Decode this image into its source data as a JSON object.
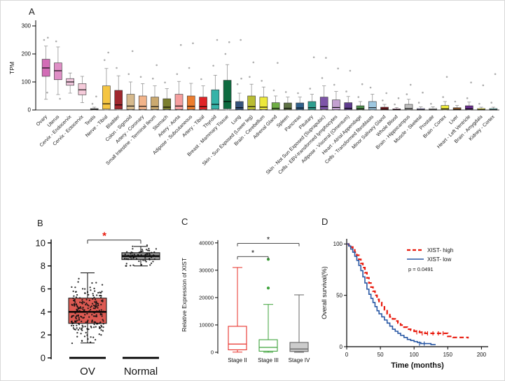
{
  "figure": {
    "panels": {
      "a": "A",
      "b": "B",
      "c": "C",
      "d": "D"
    }
  },
  "chart_data": [
    {
      "id": "A",
      "type": "box",
      "title": "",
      "ylabel": "TPM",
      "yticks": [
        0,
        100,
        200,
        300
      ],
      "ylim": [
        0,
        340
      ],
      "boxes": [
        {
          "label": "Ovary",
          "color": "#D26CB6",
          "q1": 120,
          "med": 150,
          "q3": 181,
          "lo": 38,
          "hi": 228,
          "out": [
            250,
            258,
            62
          ]
        },
        {
          "label": "Uterus",
          "color": "#DF8FC6",
          "q1": 108,
          "med": 140,
          "q3": 168,
          "lo": 55,
          "hi": 225,
          "out": [
            245,
            40
          ]
        },
        {
          "label": "Cervix - Endocervix",
          "color": "#F0C6DC",
          "q1": 88,
          "med": 100,
          "q3": 112,
          "lo": 60,
          "hi": 132,
          "out": []
        },
        {
          "label": "Cervix - Ectocervix",
          "color": "#F5CBDA",
          "q1": 54,
          "med": 72,
          "q3": 94,
          "lo": 26,
          "hi": 120,
          "out": []
        },
        {
          "label": "Testis",
          "color": "#A8A8A8",
          "q1": 1,
          "med": 2,
          "q3": 5,
          "lo": 0,
          "hi": 10,
          "out": [
            22,
            48
          ]
        },
        {
          "label": "Nerve - Tibial",
          "color": "#F5C542",
          "q1": 3,
          "med": 22,
          "q3": 86,
          "lo": 0,
          "hi": 148,
          "out": [
            178,
            205
          ]
        },
        {
          "label": "Bladder",
          "color": "#A0282E",
          "q1": 3,
          "med": 18,
          "q3": 70,
          "lo": 0,
          "hi": 122,
          "out": [
            150
          ]
        },
        {
          "label": "Colon - Sigmoid",
          "color": "#D6B98C",
          "q1": 2,
          "med": 14,
          "q3": 56,
          "lo": 0,
          "hi": 100,
          "out": [
            128,
            210
          ]
        },
        {
          "label": "Artery - Coronary",
          "color": "#F2B48A",
          "q1": 2,
          "med": 13,
          "q3": 50,
          "lo": 0,
          "hi": 94,
          "out": [
            118
          ]
        },
        {
          "label": "Small Intestine - Terminal Ileum",
          "color": "#CBA96F",
          "q1": 2,
          "med": 12,
          "q3": 46,
          "lo": 0,
          "hi": 86,
          "out": [
            112,
            160
          ]
        },
        {
          "label": "Stomach",
          "color": "#7A7E2E",
          "q1": 2,
          "med": 10,
          "q3": 40,
          "lo": 0,
          "hi": 76,
          "out": [
            98
          ]
        },
        {
          "label": "Artery - Aorta",
          "color": "#F59E9E",
          "q1": 2,
          "med": 14,
          "q3": 56,
          "lo": 0,
          "hi": 102,
          "out": [
            128,
            232
          ]
        },
        {
          "label": "Adipose - Subcutaneous",
          "color": "#EC7D2E",
          "q1": 2,
          "med": 13,
          "q3": 50,
          "lo": 0,
          "hi": 95,
          "out": [
            150,
            238
          ]
        },
        {
          "label": "Artery - Tibial",
          "color": "#E02428",
          "q1": 2,
          "med": 12,
          "q3": 46,
          "lo": 0,
          "hi": 86,
          "out": [
            110
          ]
        },
        {
          "label": "Thyroid",
          "color": "#35B3A8",
          "q1": 3,
          "med": 20,
          "q3": 72,
          "lo": 0,
          "hi": 124,
          "out": [
            158,
            250
          ]
        },
        {
          "label": "Breast - Mammary Tissue",
          "color": "#0E6B40",
          "q1": 4,
          "med": 30,
          "q3": 106,
          "lo": 0,
          "hi": 162,
          "out": [
            200,
            242
          ]
        },
        {
          "label": "Lung",
          "color": "#35537C",
          "q1": 1,
          "med": 8,
          "q3": 30,
          "lo": 0,
          "hi": 60,
          "out": [
            92,
            112,
            250
          ]
        },
        {
          "label": "Skin - Sun Exposed (Lower leg)",
          "color": "#B9BD33",
          "q1": 2,
          "med": 12,
          "q3": 50,
          "lo": 0,
          "hi": 92,
          "out": [
            118,
            170
          ]
        },
        {
          "label": "Brain - Cerebellum",
          "color": "#EDE93B",
          "q1": 2,
          "med": 10,
          "q3": 46,
          "lo": 0,
          "hi": 82,
          "out": [
            104
          ]
        },
        {
          "label": "Adrenal Gland",
          "color": "#6FAE45",
          "q1": 1,
          "med": 6,
          "q3": 26,
          "lo": 0,
          "hi": 50,
          "out": [
            70,
            168
          ]
        },
        {
          "label": "Spleen",
          "color": "#5E7243",
          "q1": 1,
          "med": 6,
          "q3": 25,
          "lo": 0,
          "hi": 46,
          "out": [
            64
          ]
        },
        {
          "label": "Pancreas",
          "color": "#30618C",
          "q1": 1,
          "med": 7,
          "q3": 25,
          "lo": 0,
          "hi": 46,
          "out": [
            60
          ]
        },
        {
          "label": "Pituitary",
          "color": "#2E9E8E",
          "q1": 1,
          "med": 8,
          "q3": 30,
          "lo": 0,
          "hi": 56,
          "out": [
            76,
            188
          ]
        },
        {
          "label": "Skin - Not Sun Exposed (Suprapubic)",
          "color": "#7D54A8",
          "q1": 2,
          "med": 12,
          "q3": 46,
          "lo": 0,
          "hi": 86,
          "out": [
            114,
            186
          ]
        },
        {
          "label": "Cells - EBV-transformed lymphocytes",
          "color": "#C3A0D0",
          "q1": 1,
          "med": 9,
          "q3": 36,
          "lo": 0,
          "hi": 66,
          "out": [
            90,
            148
          ]
        },
        {
          "label": "Adipose - Visceral (Omentum)",
          "color": "#5F3C8E",
          "q1": 1,
          "med": 6,
          "q3": 26,
          "lo": 0,
          "hi": 48,
          "out": [
            66,
            140
          ]
        },
        {
          "label": "Heart - Atrial Appendage",
          "color": "#4C8C4A",
          "q1": 1,
          "med": 4,
          "q3": 15,
          "lo": 0,
          "hi": 30,
          "out": [
            46,
            92
          ]
        },
        {
          "label": "Cells - Transformed fibroblasts",
          "color": "#9DC7E0",
          "q1": 1,
          "med": 8,
          "q3": 30,
          "lo": 0,
          "hi": 56,
          "out": [
            80
          ]
        },
        {
          "label": "Minor Salivary Gland",
          "color": "#7E1E24",
          "q1": 0,
          "med": 3,
          "q3": 10,
          "lo": 0,
          "hi": 20,
          "out": [
            34,
            60
          ]
        },
        {
          "label": "Whole Blood",
          "color": "#C75C94",
          "q1": 0,
          "med": 1,
          "q3": 4,
          "lo": 0,
          "hi": 9,
          "out": [
            20,
            42
          ]
        },
        {
          "label": "Brain - Hippocampus",
          "color": "#BFBFBF",
          "q1": 1,
          "med": 5,
          "q3": 20,
          "lo": 0,
          "hi": 38,
          "out": [
            56,
            90
          ]
        },
        {
          "label": "Muscle - Skeletal",
          "color": "#ABA3D8",
          "q1": 0,
          "med": 1,
          "q3": 5,
          "lo": 0,
          "hi": 11,
          "out": [
            26,
            62
          ]
        },
        {
          "label": "Prostate",
          "color": "#D9D9D9",
          "q1": 0,
          "med": 1,
          "q3": 5,
          "lo": 0,
          "hi": 11,
          "out": [
            22
          ]
        },
        {
          "label": "Brain - Cortex",
          "color": "#EDE93B",
          "q1": 1,
          "med": 4,
          "q3": 16,
          "lo": 0,
          "hi": 30,
          "out": [
            46,
            118
          ]
        },
        {
          "label": "Liver",
          "color": "#955C2E",
          "q1": 0,
          "med": 2,
          "q3": 8,
          "lo": 0,
          "hi": 16,
          "out": [
            30
          ]
        },
        {
          "label": "Heart - Left Ventricle",
          "color": "#6A2E8E",
          "q1": 1,
          "med": 4,
          "q3": 15,
          "lo": 0,
          "hi": 28,
          "out": [
            42,
            98
          ]
        },
        {
          "label": "Brain - Amygdala",
          "color": "#EDE93B",
          "q1": 0,
          "med": 1,
          "q3": 5,
          "lo": 0,
          "hi": 10,
          "out": [
            22,
            88
          ]
        },
        {
          "label": "Kidney - Cortex",
          "color": "#74C9C3",
          "q1": 0,
          "med": 1,
          "q3": 5,
          "lo": 0,
          "hi": 10,
          "out": [
            26,
            128
          ]
        }
      ]
    },
    {
      "id": "B",
      "type": "box",
      "yticks": [
        0,
        2,
        4,
        6,
        8,
        10
      ],
      "ylim": [
        0,
        10.6
      ],
      "boxes": [
        {
          "label": "OV",
          "color": "#DD5A52",
          "stroke": "#222222",
          "q1": 3.0,
          "med": 4.0,
          "q3": 5.2,
          "lo": 1.3,
          "hi": 7.4,
          "scatter": {
            "n": 230,
            "mean": 4.1,
            "spread": 7,
            "min": 0.9,
            "max": 7.6
          },
          "zero_strip": true
        },
        {
          "label": "Normal",
          "color": "#8F8F8F",
          "stroke": "#222222",
          "q1": 8.55,
          "med": 8.85,
          "q3": 9.15,
          "lo": 8.0,
          "hi": 9.7,
          "scatter": {
            "n": 70,
            "mean": 8.9,
            "spread": 2.4,
            "min": 8.0,
            "max": 9.8
          },
          "zero_strip": true
        }
      ],
      "sig": {
        "label": "*",
        "color": "#E8190C"
      }
    },
    {
      "id": "C",
      "type": "box",
      "ylabel": "Relative Expression of XIST",
      "yticks": [
        0,
        10000,
        20000,
        30000,
        40000
      ],
      "ylim": [
        0,
        42000
      ],
      "boxes": [
        {
          "label": "Stage II",
          "stroke": "#E8302A",
          "fill": "none",
          "q1": 900,
          "med": 3000,
          "q3": 9500,
          "lo": 60,
          "hi": 31000,
          "out": []
        },
        {
          "label": "Stage III",
          "stroke": "#3FA33C",
          "fill": "none",
          "q1": 400,
          "med": 1800,
          "q3": 4600,
          "lo": 0,
          "hi": 17500,
          "out": [
            34000,
            23500
          ]
        },
        {
          "label": "Stage IV",
          "stroke": "#666666",
          "fill": "#CCCCCC",
          "q1": 300,
          "med": 1200,
          "q3": 3600,
          "lo": 0,
          "hi": 21000,
          "out": []
        }
      ],
      "brackets": [
        {
          "a": 0,
          "b": 1,
          "y": 35000,
          "label": "*"
        },
        {
          "a": 0,
          "b": 2,
          "y": 39800,
          "label": "*"
        }
      ]
    },
    {
      "id": "D",
      "type": "km",
      "xlabel": "Time (months)",
      "ylabel": "Overall survival(%)",
      "xticks": [
        0,
        50,
        100,
        150,
        200
      ],
      "yticks": [
        0,
        50,
        100
      ],
      "xlim": [
        0,
        210
      ],
      "ylim": [
        0,
        105
      ],
      "p_label": "p = 0.0491",
      "legend_position": "top-right",
      "series": [
        {
          "name": "XIST- high",
          "color": "#E8190C",
          "dash": true,
          "width": 2.2,
          "points": [
            [
              0,
              100
            ],
            [
              3,
              99
            ],
            [
              6,
              97
            ],
            [
              9,
              95
            ],
            [
              12,
              92
            ],
            [
              15,
              89
            ],
            [
              18,
              85
            ],
            [
              21,
              81
            ],
            [
              24,
              77
            ],
            [
              27,
              72
            ],
            [
              30,
              67
            ],
            [
              33,
              62
            ],
            [
              36,
              58
            ],
            [
              39,
              54
            ],
            [
              42,
              50
            ],
            [
              45,
              46
            ],
            [
              48,
              43
            ],
            [
              52,
              40
            ],
            [
              56,
              36
            ],
            [
              60,
              32
            ],
            [
              64,
              29
            ],
            [
              68,
              27
            ],
            [
              72,
              25
            ],
            [
              76,
              23
            ],
            [
              80,
              21
            ],
            [
              85,
              19
            ],
            [
              90,
              17
            ],
            [
              95,
              16
            ],
            [
              100,
              15
            ],
            [
              108,
              14
            ],
            [
              116,
              13
            ],
            [
              130,
              13
            ],
            [
              148,
              13
            ],
            [
              150,
              10
            ],
            [
              158,
              9
            ],
            [
              170,
              9
            ],
            [
              180,
              8
            ]
          ],
          "censor": [
            [
              104,
              14
            ],
            [
              112,
              13
            ],
            [
              120,
              13
            ],
            [
              128,
              13
            ],
            [
              136,
              13
            ],
            [
              143,
              13
            ]
          ]
        },
        {
          "name": "XIST- low",
          "color": "#2857A4",
          "dash": false,
          "width": 1.6,
          "points": [
            [
              0,
              100
            ],
            [
              3,
              98
            ],
            [
              6,
              95
            ],
            [
              9,
              92
            ],
            [
              12,
              88
            ],
            [
              15,
              84
            ],
            [
              18,
              79
            ],
            [
              21,
              74
            ],
            [
              24,
              68
            ],
            [
              27,
              62
            ],
            [
              30,
              56
            ],
            [
              33,
              51
            ],
            [
              36,
              47
            ],
            [
              39,
              43
            ],
            [
              42,
              39
            ],
            [
              45,
              35
            ],
            [
              48,
              32
            ],
            [
              52,
              29
            ],
            [
              56,
              26
            ],
            [
              60,
              23
            ],
            [
              64,
              20
            ],
            [
              68,
              17
            ],
            [
              72,
              15
            ],
            [
              76,
              13
            ],
            [
              80,
              11
            ],
            [
              85,
              9
            ],
            [
              90,
              7
            ],
            [
              95,
              6
            ],
            [
              100,
              5
            ],
            [
              105,
              4
            ],
            [
              110,
              3
            ],
            [
              118,
              3
            ],
            [
              125,
              2
            ],
            [
              132,
              2
            ]
          ],
          "censor": [
            [
              108,
              3
            ],
            [
              115,
              3
            ]
          ]
        }
      ]
    }
  ]
}
